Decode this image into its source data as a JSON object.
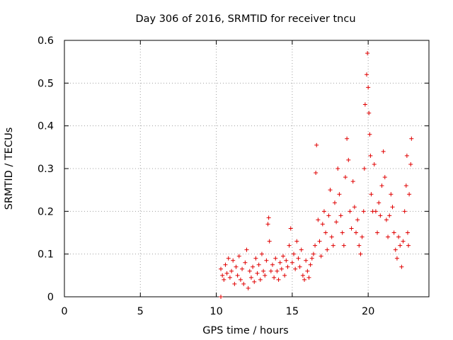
{
  "chart_data": {
    "type": "scatter",
    "title": "Day 306 of 2016, SRMTID for receiver tncu",
    "xlabel": "GPS time / hours",
    "ylabel": "SRMTID / TECUs",
    "xlim": [
      0,
      24
    ],
    "ylim": [
      0,
      0.6
    ],
    "x_ticks": [
      "0",
      "5",
      "10",
      "15",
      "20"
    ],
    "x_tick_values": [
      0,
      5,
      10,
      15,
      20
    ],
    "y_ticks": [
      "0",
      "0.1",
      "0.2",
      "0.3",
      "0.4",
      "0.5",
      "0.6"
    ],
    "y_tick_values": [
      0,
      0.1,
      0.2,
      0.3,
      0.4,
      0.5,
      0.6
    ],
    "grid": true,
    "marker": "+",
    "color": "#e00000",
    "series": [
      {
        "name": "SRMTID",
        "points": [
          [
            10.3,
            0.0
          ],
          [
            10.3,
            0.065
          ],
          [
            10.4,
            0.05
          ],
          [
            10.5,
            0.04
          ],
          [
            10.6,
            0.075
          ],
          [
            10.7,
            0.055
          ],
          [
            10.8,
            0.09
          ],
          [
            10.9,
            0.045
          ],
          [
            11.0,
            0.06
          ],
          [
            11.1,
            0.085
          ],
          [
            11.2,
            0.03
          ],
          [
            11.3,
            0.07
          ],
          [
            11.4,
            0.05
          ],
          [
            11.5,
            0.095
          ],
          [
            11.6,
            0.04
          ],
          [
            11.7,
            0.065
          ],
          [
            11.8,
            0.03
          ],
          [
            11.9,
            0.08
          ],
          [
            12.0,
            0.11
          ],
          [
            12.1,
            0.02
          ],
          [
            12.2,
            0.06
          ],
          [
            12.3,
            0.045
          ],
          [
            12.4,
            0.07
          ],
          [
            12.5,
            0.035
          ],
          [
            12.6,
            0.09
          ],
          [
            12.7,
            0.055
          ],
          [
            12.8,
            0.075
          ],
          [
            12.9,
            0.04
          ],
          [
            13.0,
            0.1
          ],
          [
            13.1,
            0.06
          ],
          [
            13.2,
            0.05
          ],
          [
            13.3,
            0.085
          ],
          [
            13.4,
            0.17
          ],
          [
            13.45,
            0.185
          ],
          [
            13.5,
            0.13
          ],
          [
            13.6,
            0.06
          ],
          [
            13.7,
            0.075
          ],
          [
            13.8,
            0.045
          ],
          [
            13.9,
            0.09
          ],
          [
            14.0,
            0.06
          ],
          [
            14.1,
            0.04
          ],
          [
            14.2,
            0.08
          ],
          [
            14.3,
            0.065
          ],
          [
            14.4,
            0.095
          ],
          [
            14.5,
            0.05
          ],
          [
            14.6,
            0.085
          ],
          [
            14.7,
            0.07
          ],
          [
            14.8,
            0.12
          ],
          [
            14.9,
            0.16
          ],
          [
            15.0,
            0.08
          ],
          [
            15.1,
            0.1
          ],
          [
            15.2,
            0.065
          ],
          [
            15.3,
            0.13
          ],
          [
            15.4,
            0.09
          ],
          [
            15.5,
            0.07
          ],
          [
            15.6,
            0.11
          ],
          [
            15.7,
            0.05
          ],
          [
            15.8,
            0.04
          ],
          [
            15.9,
            0.085
          ],
          [
            16.0,
            0.06
          ],
          [
            16.1,
            0.045
          ],
          [
            16.2,
            0.075
          ],
          [
            16.3,
            0.09
          ],
          [
            16.4,
            0.1
          ],
          [
            16.5,
            0.12
          ],
          [
            16.55,
            0.29
          ],
          [
            16.6,
            0.355
          ],
          [
            16.7,
            0.18
          ],
          [
            16.8,
            0.13
          ],
          [
            16.9,
            0.095
          ],
          [
            17.0,
            0.17
          ],
          [
            17.1,
            0.2
          ],
          [
            17.2,
            0.15
          ],
          [
            17.3,
            0.11
          ],
          [
            17.4,
            0.19
          ],
          [
            17.5,
            0.25
          ],
          [
            17.6,
            0.14
          ],
          [
            17.7,
            0.12
          ],
          [
            17.8,
            0.22
          ],
          [
            17.9,
            0.175
          ],
          [
            18.0,
            0.3
          ],
          [
            18.1,
            0.24
          ],
          [
            18.2,
            0.19
          ],
          [
            18.3,
            0.15
          ],
          [
            18.4,
            0.12
          ],
          [
            18.5,
            0.28
          ],
          [
            18.6,
            0.37
          ],
          [
            18.7,
            0.32
          ],
          [
            18.8,
            0.2
          ],
          [
            18.9,
            0.16
          ],
          [
            19.0,
            0.27
          ],
          [
            19.1,
            0.21
          ],
          [
            19.2,
            0.15
          ],
          [
            19.3,
            0.18
          ],
          [
            19.4,
            0.12
          ],
          [
            19.5,
            0.1
          ],
          [
            19.6,
            0.14
          ],
          [
            19.7,
            0.2
          ],
          [
            19.75,
            0.3
          ],
          [
            19.8,
            0.45
          ],
          [
            19.9,
            0.52
          ],
          [
            19.95,
            0.57
          ],
          [
            20.0,
            0.49
          ],
          [
            20.05,
            0.43
          ],
          [
            20.1,
            0.38
          ],
          [
            20.15,
            0.33
          ],
          [
            20.2,
            0.24
          ],
          [
            20.3,
            0.2
          ],
          [
            20.4,
            0.31
          ],
          [
            20.5,
            0.2
          ],
          [
            20.6,
            0.15
          ],
          [
            20.7,
            0.22
          ],
          [
            20.8,
            0.19
          ],
          [
            20.9,
            0.26
          ],
          [
            21.0,
            0.34
          ],
          [
            21.1,
            0.28
          ],
          [
            21.2,
            0.18
          ],
          [
            21.3,
            0.14
          ],
          [
            21.4,
            0.19
          ],
          [
            21.5,
            0.24
          ],
          [
            21.6,
            0.21
          ],
          [
            21.7,
            0.15
          ],
          [
            21.8,
            0.11
          ],
          [
            21.9,
            0.09
          ],
          [
            22.0,
            0.14
          ],
          [
            22.1,
            0.12
          ],
          [
            22.2,
            0.07
          ],
          [
            22.3,
            0.13
          ],
          [
            22.4,
            0.2
          ],
          [
            22.5,
            0.26
          ],
          [
            22.55,
            0.33
          ],
          [
            22.6,
            0.15
          ],
          [
            22.65,
            0.12
          ],
          [
            22.7,
            0.24
          ],
          [
            22.8,
            0.31
          ],
          [
            22.85,
            0.37
          ]
        ]
      }
    ]
  }
}
